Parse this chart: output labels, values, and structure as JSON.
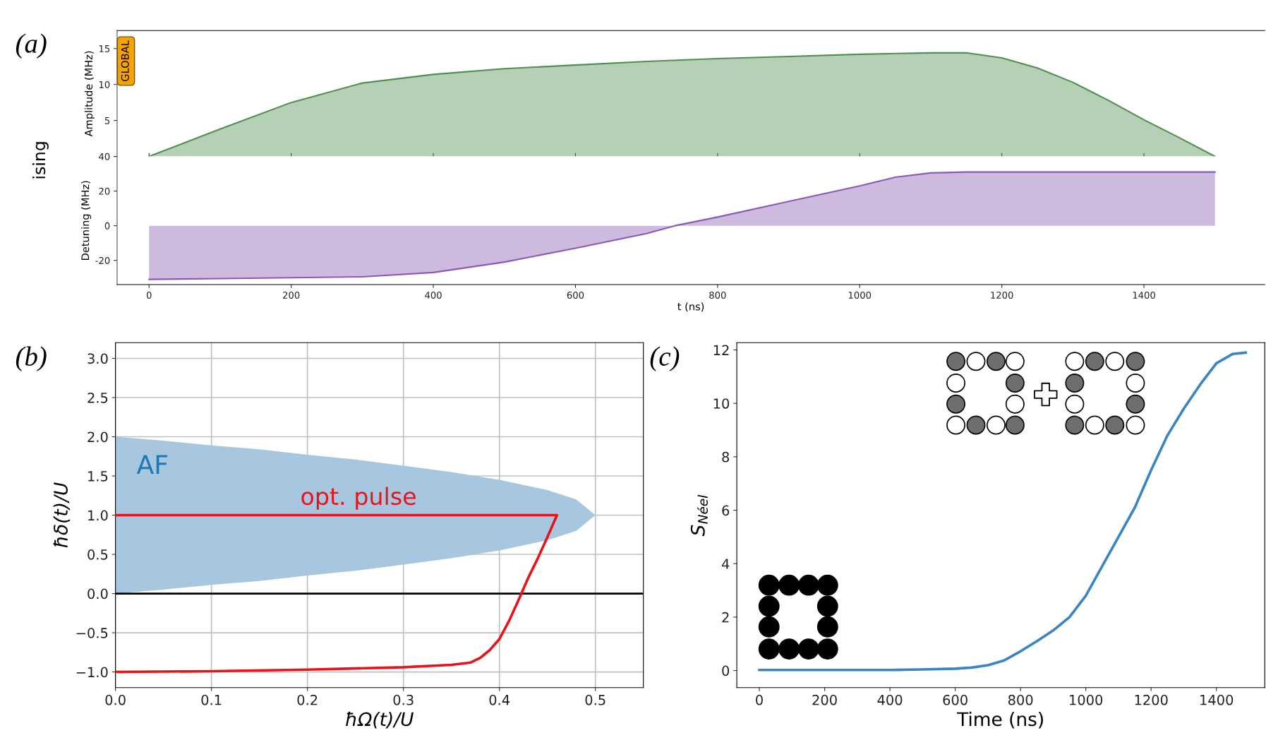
{
  "chart_data": [
    {
      "type": "area",
      "ylabel": "Amplitude (MHz)",
      "annotations": [
        "(a)",
        "ising",
        "GLOBAL"
      ],
      "x": [
        0,
        100,
        200,
        300,
        400,
        500,
        600,
        700,
        800,
        900,
        1000,
        1100,
        1150,
        1200,
        1250,
        1300,
        1350,
        1400,
        1450,
        1500
      ],
      "series": [
        {
          "color": "#4f8f4f",
          "values": [
            0,
            3.8,
            7.5,
            10.2,
            11.4,
            12.2,
            12.7,
            13.2,
            13.6,
            13.9,
            14.2,
            14.4,
            14.4,
            13.7,
            12.3,
            10.3,
            7.8,
            5.1,
            2.6,
            0
          ]
        }
      ],
      "xlim": [
        -45,
        1570
      ],
      "ylim": [
        0,
        17.5
      ],
      "xticks": [
        0,
        200,
        400,
        600,
        800,
        1000,
        1200,
        1400
      ],
      "yticks": [
        {
          "value": 0,
          "label": null
        },
        5,
        10,
        15
      ],
      "tick_labels": "y",
      "grid": false
    },
    {
      "type": "area",
      "ylabel": "Detuning (MHz)",
      "xlabel": "t (ns)",
      "x": [
        0,
        100,
        200,
        300,
        400,
        500,
        600,
        700,
        740,
        800,
        900,
        1000,
        1050,
        1100,
        1150,
        1200,
        1300,
        1400,
        1500
      ],
      "series": [
        {
          "color": "#8a5bb0",
          "values": [
            -31,
            -30.5,
            -30,
            -29.5,
            -27,
            -21,
            -13,
            -4.5,
            0,
            5,
            14,
            23,
            28,
            30.5,
            31,
            31,
            31,
            31,
            31
          ]
        }
      ],
      "xlim": [
        -45,
        1570
      ],
      "ylim": [
        -34,
        40
      ],
      "xticks": [
        0,
        200,
        400,
        600,
        800,
        1000,
        1200,
        1400
      ],
      "yticks": [
        -20,
        0,
        20,
        40
      ],
      "grid": false
    },
    {
      "type": "line",
      "xlabel": "ħΩ(t)/U",
      "ylabel": "ħδ(t)/U",
      "annotations": [
        "(b)"
      ],
      "series": [
        {
          "name": "AF",
          "type": "area",
          "color": "#a7c7e0",
          "x": [
            0,
            0.05,
            0.1,
            0.15,
            0.2,
            0.25,
            0.3,
            0.35,
            0.4,
            0.45,
            0.48,
            0.5,
            0.48,
            0.45,
            0.4,
            0.35,
            0.3,
            0.25,
            0.2,
            0.15,
            0.1,
            0.05,
            0
          ],
          "values": [
            2.0,
            1.95,
            1.89,
            1.84,
            1.77,
            1.71,
            1.63,
            1.55,
            1.45,
            1.32,
            1.2,
            1.0,
            0.8,
            0.68,
            0.55,
            0.45,
            0.37,
            0.29,
            0.23,
            0.16,
            0.11,
            0.05,
            0
          ]
        },
        {
          "name": "opt. pulse",
          "type": "line",
          "color": "#e8141c",
          "x": [
            0,
            0.1,
            0.2,
            0.3,
            0.35,
            0.37,
            0.38,
            0.39,
            0.4,
            0.41,
            0.42,
            0.43,
            0.44,
            0.45,
            0.46,
            0.3,
            0.0
          ],
          "values": [
            -1.0,
            -0.99,
            -0.97,
            -0.94,
            -0.91,
            -0.88,
            -0.82,
            -0.72,
            -0.58,
            -0.35,
            -0.08,
            0.2,
            0.45,
            0.72,
            1.0,
            1.0,
            1.0
          ]
        }
      ],
      "ref_lines": [
        {
          "axis": "y",
          "value": 0,
          "color": "#000000"
        }
      ],
      "xlim": [
        0,
        0.55
      ],
      "ylim": [
        -1.2,
        3.2
      ],
      "xticks": [
        {
          "value": 0,
          "label": "0.0"
        },
        0.1,
        0.2,
        0.3,
        0.4,
        0.5
      ],
      "yticks": [
        {
          "value": -1,
          "label": "−1.0"
        },
        {
          "value": -0.5,
          "label": "−0.5"
        },
        {
          "value": 0,
          "label": "0.0"
        },
        0.5,
        {
          "value": 1,
          "label": "1.0"
        },
        1.5,
        {
          "value": 2,
          "label": "2.0"
        },
        2.5,
        {
          "value": 3,
          "label": "3.0"
        }
      ],
      "grid": true
    },
    {
      "type": "line",
      "xlabel": "Time (ns)",
      "ylabel": "S$_{Néel}$",
      "annotations": [
        "(c)"
      ],
      "x": [
        0,
        200,
        400,
        500,
        600,
        650,
        700,
        750,
        800,
        850,
        900,
        950,
        1000,
        1050,
        1100,
        1150,
        1200,
        1250,
        1300,
        1350,
        1400,
        1450,
        1490
      ],
      "series": [
        {
          "color": "#3a84c0",
          "values": [
            0.02,
            0.02,
            0.02,
            0.04,
            0.07,
            0.11,
            0.2,
            0.38,
            0.72,
            1.1,
            1.5,
            2.0,
            2.8,
            3.9,
            5.0,
            6.1,
            7.5,
            8.8,
            9.8,
            10.7,
            11.5,
            11.85,
            11.9
          ]
        }
      ],
      "xlim": [
        -69,
        1548
      ],
      "ylim": [
        -0.64,
        12.27
      ],
      "xticks": [
        0,
        200,
        400,
        600,
        800,
        1000,
        1200,
        1400
      ],
      "yticks": [
        0,
        2,
        4,
        6,
        8,
        10,
        12
      ],
      "grid": false
    }
  ]
}
